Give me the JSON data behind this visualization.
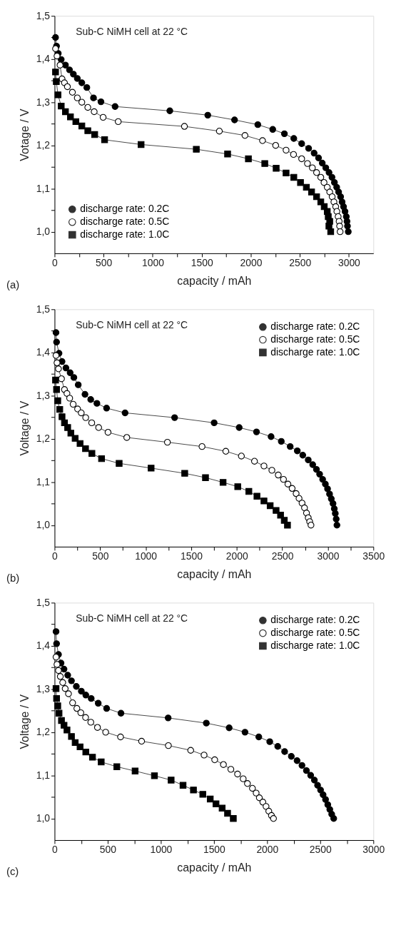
{
  "chart_data": [
    {
      "type": "line",
      "xlabel": "capacity / mAh",
      "ylabel": "Votage / V",
      "annotations": [
        "Sub-C NiMH cell at 22 °C",
        "(a)"
      ],
      "xlim": [
        0,
        3250
      ],
      "xticks": [
        0,
        {
          "value": 250,
          "label": null
        },
        500,
        {
          "value": 750,
          "label": null
        },
        1000,
        {
          "value": 1250,
          "label": null
        },
        1500,
        {
          "value": 1750,
          "label": null
        },
        2000,
        {
          "value": 2250,
          "label": null
        },
        2500,
        {
          "value": 2750,
          "label": null
        },
        3000
      ],
      "ylim": [
        0.95,
        1.5
      ],
      "yticks": [
        {
          "value": 1.0,
          "label": "1,0"
        },
        {
          "value": 1.05,
          "label": null
        },
        {
          "value": 1.1,
          "label": "1,1"
        },
        {
          "value": 1.15,
          "label": null
        },
        {
          "value": 1.2,
          "label": "1,2"
        },
        {
          "value": 1.25,
          "label": null
        },
        {
          "value": 1.3,
          "label": "1,3"
        },
        {
          "value": 1.35,
          "label": null
        },
        {
          "value": 1.4,
          "label": "1,4"
        },
        {
          "value": 1.45,
          "label": null
        },
        {
          "value": 1.5,
          "label": "1,5"
        }
      ],
      "legend": "bottom left",
      "line_style": "solid",
      "series": [
        {
          "name": "discharge rate: 0.2C",
          "color": "#000000",
          "marker": "circle",
          "x": [
            10,
            20,
            38,
            68,
            111,
            152,
            192,
            232,
            278,
            329,
            397,
            473,
            617,
            1175,
            1562,
            1835,
            2072,
            2224,
            2343,
            2439,
            2519,
            2590,
            2646,
            2691,
            2729,
            2765,
            2798,
            2828,
            2853,
            2876,
            2896,
            2916,
            2931,
            2946,
            2961,
            2974,
            2981,
            2986,
            2994
          ],
          "values": [
            1.45,
            1.43,
            1.413,
            1.399,
            1.386,
            1.375,
            1.365,
            1.355,
            1.345,
            1.334,
            1.31,
            1.301,
            1.29,
            1.28,
            1.27,
            1.259,
            1.248,
            1.237,
            1.227,
            1.216,
            1.204,
            1.193,
            1.182,
            1.171,
            1.159,
            1.148,
            1.137,
            1.126,
            1.114,
            1.103,
            1.092,
            1.081,
            1.069,
            1.058,
            1.047,
            1.035,
            1.024,
            1.013,
            1.0
          ]
        },
        {
          "name": "discharge rate: 0.5C",
          "color": "#000000",
          "marker": "circle",
          "x": [
            10,
            25,
            56,
            76,
            101,
            131,
            182,
            232,
            278,
            339,
            404,
            495,
            649,
            1324,
            1680,
            1941,
            2120,
            2254,
            2360,
            2436,
            2519,
            2578,
            2628,
            2671,
            2714,
            2747,
            2780,
            2805,
            2830,
            2848,
            2866,
            2878,
            2891,
            2901,
            2906,
            2911
          ],
          "values": [
            1.424,
            1.407,
            1.386,
            1.354,
            1.345,
            1.336,
            1.323,
            1.31,
            1.3,
            1.288,
            1.278,
            1.265,
            1.255,
            1.244,
            1.233,
            1.223,
            1.211,
            1.2,
            1.189,
            1.179,
            1.169,
            1.158,
            1.148,
            1.137,
            1.126,
            1.114,
            1.103,
            1.092,
            1.081,
            1.069,
            1.058,
            1.047,
            1.035,
            1.024,
            1.013,
            1.0
          ]
        },
        {
          "name": "discharge rate: 1.0C",
          "color": "#000000",
          "marker": "square",
          "x": [
            10,
            18,
            35,
            68,
            111,
            162,
            217,
            278,
            339,
            409,
            510,
            882,
            1445,
            1764,
            1976,
            2143,
            2259,
            2360,
            2439,
            2507,
            2567,
            2620,
            2671,
            2714,
            2749,
            2780,
            2790,
            2797,
            2805,
            2815
          ],
          "values": [
            1.37,
            1.348,
            1.317,
            1.291,
            1.278,
            1.266,
            1.255,
            1.245,
            1.234,
            1.225,
            1.213,
            1.202,
            1.191,
            1.18,
            1.169,
            1.158,
            1.147,
            1.136,
            1.126,
            1.114,
            1.103,
            1.092,
            1.081,
            1.069,
            1.058,
            1.047,
            1.035,
            1.013,
            1.024,
            1.0
          ]
        }
      ]
    },
    {
      "type": "line",
      "xlabel": "capacity / mAh",
      "ylabel": "Voltage / V",
      "annotations": [
        "Sub-C NiMH cell at 22 °C",
        "(b)"
      ],
      "xlim": [
        0,
        3500
      ],
      "xticks": [
        0,
        {
          "value": 250,
          "label": null
        },
        500,
        {
          "value": 750,
          "label": null
        },
        1000,
        {
          "value": 1250,
          "label": null
        },
        1500,
        {
          "value": 1750,
          "label": null
        },
        2000,
        {
          "value": 2250,
          "label": null
        },
        2500,
        {
          "value": 2750,
          "label": null
        },
        3000,
        {
          "value": 3250,
          "label": null
        },
        3500
      ],
      "ylim": [
        0.95,
        1.5
      ],
      "yticks": [
        {
          "value": 1.0,
          "label": "1,0"
        },
        {
          "value": 1.05,
          "label": null
        },
        {
          "value": 1.1,
          "label": "1,1"
        },
        {
          "value": 1.15,
          "label": null
        },
        {
          "value": 1.2,
          "label": "1,2"
        },
        {
          "value": 1.25,
          "label": null
        },
        {
          "value": 1.3,
          "label": "1,3"
        },
        {
          "value": 1.35,
          "label": null
        },
        {
          "value": 1.4,
          "label": "1,4"
        },
        {
          "value": 1.45,
          "label": null
        },
        {
          "value": 1.5,
          "label": "1,5"
        }
      ],
      "legend": "top right",
      "line_style": "solid",
      "series": [
        {
          "name": "discharge rate: 0.2C",
          "color": "#000000",
          "marker": "circle",
          "x": [
            16,
            22,
            49,
            82,
            125,
            171,
            212,
            260,
            334,
            397,
            465,
            571,
            774,
            1318,
            1752,
            2027,
            2217,
            2377,
            2489,
            2587,
            2665,
            2725,
            2785,
            2834,
            2875,
            2910,
            2943,
            2973,
            2997,
            3019,
            3038,
            3057,
            3071,
            3082,
            3092,
            3100
          ],
          "values": [
            1.446,
            1.424,
            1.398,
            1.379,
            1.364,
            1.353,
            1.342,
            1.325,
            1.303,
            1.291,
            1.282,
            1.271,
            1.26,
            1.249,
            1.237,
            1.226,
            1.216,
            1.205,
            1.194,
            1.182,
            1.172,
            1.162,
            1.151,
            1.14,
            1.129,
            1.118,
            1.106,
            1.095,
            1.084,
            1.072,
            1.061,
            1.05,
            1.038,
            1.027,
            1.014,
            1.0
          ]
        },
        {
          "name": "discharge rate: 0.5C",
          "color": "#000000",
          "marker": "circle",
          "x": [
            16,
            27,
            43,
            76,
            109,
            136,
            166,
            204,
            253,
            293,
            342,
            408,
            484,
            587,
            793,
            1239,
            1619,
            1880,
            2051,
            2195,
            2299,
            2386,
            2456,
            2513,
            2562,
            2608,
            2652,
            2684,
            2717,
            2744,
            2766,
            2785,
            2801,
            2815
          ],
          "values": [
            1.393,
            1.376,
            1.362,
            1.339,
            1.314,
            1.305,
            1.294,
            1.28,
            1.269,
            1.26,
            1.249,
            1.237,
            1.226,
            1.215,
            1.203,
            1.192,
            1.182,
            1.171,
            1.16,
            1.148,
            1.137,
            1.127,
            1.116,
            1.106,
            1.095,
            1.085,
            1.073,
            1.062,
            1.051,
            1.04,
            1.028,
            1.017,
            1.008,
            1.0
          ]
        },
        {
          "name": "discharge rate: 1.0C",
          "color": "#000000",
          "marker": "square",
          "x": [
            11,
            22,
            35,
            57,
            82,
            109,
            144,
            179,
            226,
            280,
            340,
            410,
            516,
            709,
            1060,
            1429,
            1657,
            1850,
            2011,
            2133,
            2222,
            2299,
            2367,
            2432,
            2481,
            2522,
            2557
          ],
          "values": [
            1.336,
            1.314,
            1.288,
            1.268,
            1.251,
            1.237,
            1.226,
            1.213,
            1.201,
            1.189,
            1.177,
            1.166,
            1.154,
            1.143,
            1.132,
            1.12,
            1.11,
            1.099,
            1.089,
            1.078,
            1.067,
            1.056,
            1.045,
            1.034,
            1.023,
            1.011,
            1.0
          ]
        }
      ]
    },
    {
      "type": "line",
      "xlabel": "capacity / mAh",
      "ylabel": "Voltage / V",
      "annotations": [
        "Sub-C NiMH cell at 22 °C",
        "(c)"
      ],
      "xlim": [
        0,
        3000
      ],
      "xticks": [
        0,
        {
          "value": 250,
          "label": null
        },
        500,
        {
          "value": 750,
          "label": null
        },
        1000,
        {
          "value": 1250,
          "label": null
        },
        1500,
        {
          "value": 1750,
          "label": null
        },
        2000,
        {
          "value": 2250,
          "label": null
        },
        2500,
        {
          "value": 2750,
          "label": null
        },
        3000
      ],
      "ylim": [
        0.95,
        1.5
      ],
      "yticks": [
        {
          "value": 1.0,
          "label": "1,0"
        },
        {
          "value": 1.05,
          "label": null
        },
        {
          "value": 1.1,
          "label": "1,1"
        },
        {
          "value": 1.15,
          "label": null
        },
        {
          "value": 1.2,
          "label": "1,2"
        },
        {
          "value": 1.25,
          "label": null
        },
        {
          "value": 1.3,
          "label": "1,3"
        },
        {
          "value": 1.35,
          "label": null
        },
        {
          "value": 1.4,
          "label": "1,4"
        },
        {
          "value": 1.45,
          "label": null
        },
        {
          "value": 1.5,
          "label": "1,5"
        }
      ],
      "legend": "top right",
      "line_style": "solid",
      "series": [
        {
          "name": "discharge rate: 0.2C",
          "color": "#000000",
          "marker": "circle",
          "x": [
            14,
            19,
            37,
            61,
            89,
            124,
            159,
            205,
            252,
            294,
            345,
            411,
            490,
            625,
            1069,
            1428,
            1643,
            1792,
            1922,
            2025,
            2100,
            2165,
            2228,
            2282,
            2328,
            2370,
            2410,
            2445,
            2475,
            2503,
            2527,
            2550,
            2571,
            2590,
            2608,
            2627
          ],
          "values": [
            1.433,
            1.405,
            1.38,
            1.36,
            1.346,
            1.332,
            1.319,
            1.306,
            1.295,
            1.286,
            1.278,
            1.267,
            1.255,
            1.244,
            1.233,
            1.221,
            1.21,
            1.2,
            1.189,
            1.178,
            1.167,
            1.155,
            1.144,
            1.134,
            1.123,
            1.111,
            1.1,
            1.089,
            1.077,
            1.066,
            1.055,
            1.044,
            1.032,
            1.021,
            1.01,
            1.0
          ]
        },
        {
          "name": "discharge rate: 0.5C",
          "color": "#000000",
          "marker": "circle",
          "x": [
            14,
            23,
            37,
            54,
            77,
            100,
            131,
            170,
            210,
            247,
            292,
            341,
            404,
            481,
            621,
            819,
            1071,
            1281,
            1407,
            1507,
            1589,
            1659,
            1722,
            1775,
            1815,
            1862,
            1897,
            1927,
            1960,
            1990,
            2016,
            2041,
            2060
          ],
          "values": [
            1.374,
            1.357,
            1.343,
            1.329,
            1.315,
            1.301,
            1.289,
            1.268,
            1.255,
            1.245,
            1.234,
            1.223,
            1.211,
            1.2,
            1.189,
            1.179,
            1.169,
            1.158,
            1.147,
            1.136,
            1.125,
            1.114,
            1.103,
            1.092,
            1.081,
            1.07,
            1.059,
            1.048,
            1.038,
            1.028,
            1.017,
            1.007,
            1.0
          ]
        },
        {
          "name": "discharge rate: 1.0C",
          "color": "#000000",
          "marker": "square",
          "x": [
            14,
            19,
            30,
            42,
            65,
            89,
            117,
            159,
            194,
            240,
            294,
            357,
            439,
            586,
            758,
            940,
            1097,
            1209,
            1307,
            1395,
            1465,
            1519,
            1577,
            1628,
            1682
          ],
          "values": [
            1.301,
            1.278,
            1.261,
            1.244,
            1.227,
            1.216,
            1.205,
            1.19,
            1.176,
            1.166,
            1.154,
            1.142,
            1.131,
            1.12,
            1.11,
            1.099,
            1.089,
            1.077,
            1.066,
            1.056,
            1.045,
            1.034,
            1.024,
            1.012,
            1.0
          ]
        }
      ]
    }
  ]
}
